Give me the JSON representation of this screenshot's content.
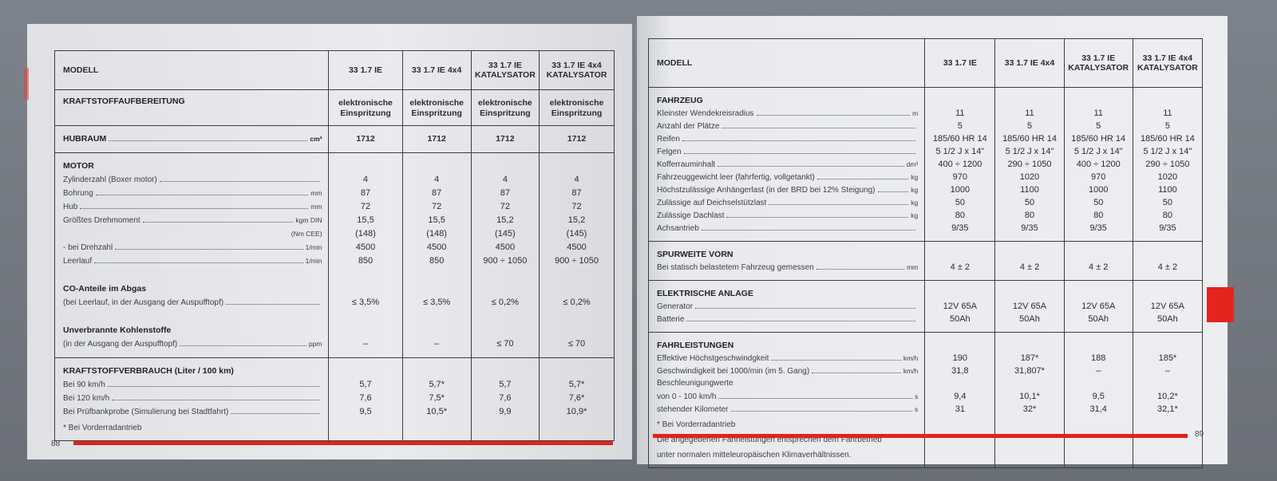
{
  "colors": {
    "accent_red": "#e2231a",
    "page": "#e6e8ec",
    "rule": "#3a3c40"
  },
  "left": {
    "page_number": "88",
    "header": {
      "label": "MODELL",
      "columns": [
        "33 1.7 IE",
        "33 1.7 IE 4x4",
        "33 1.7 IE\nKATALYSATOR",
        "33 1.7 IE 4x4\nKATALYSATOR"
      ]
    },
    "sections": [
      {
        "lines": [
          {
            "label": "KRAFTSTOFFAUFBEREITUNG",
            "bold": true,
            "multi": true,
            "values": [
              "elektronische\nEinspritzung",
              "elektronische\nEinspritzung",
              "elektronische\nEinspritzung",
              "elektronische\nEinspritzung"
            ]
          }
        ]
      },
      {
        "lines": [
          {
            "label": "HUBRAUM",
            "unit": "cm³",
            "dots": true,
            "bold": true,
            "values": [
              "1712",
              "1712",
              "1712",
              "1712"
            ]
          }
        ]
      },
      {
        "lines": [
          {
            "label": "MOTOR",
            "bold": true
          },
          {
            "label": "Zylinderzahl (Boxer motor)",
            "dots": true,
            "values": [
              "4",
              "4",
              "4",
              "4"
            ]
          },
          {
            "label": "Bohrung",
            "unit": "mm",
            "dots": true,
            "values": [
              "87",
              "87",
              "87",
              "87"
            ]
          },
          {
            "label": "Hub",
            "unit": "mm",
            "dots": true,
            "values": [
              "72",
              "72",
              "72",
              "72"
            ]
          },
          {
            "label": "Größtes Drehmoment",
            "unit": "kgm DIN",
            "dots": true,
            "values": [
              "15,5",
              "15,5",
              "15,2",
              "15,2"
            ]
          },
          {
            "label": "",
            "unit": "(Nm CEE)",
            "values": [
              "(148)",
              "(148)",
              "(145)",
              "(145)"
            ]
          },
          {
            "label": "- bei Drehzahl",
            "unit": "1/min",
            "dots": true,
            "values": [
              "4500",
              "4500",
              "4500",
              "4500"
            ]
          },
          {
            "label": "Leerlauf",
            "unit": "1/min",
            "dots": true,
            "values": [
              "850",
              "850",
              "900 ÷ 1050",
              "900 ÷ 1050"
            ]
          },
          {
            "label": "CO-Anteile im Abgas",
            "bold": true,
            "gap": true
          },
          {
            "label": "(bei Leerlauf, in der Ausgang der Auspufftopf)",
            "dots": true,
            "values": [
              "≤ 3,5%",
              "≤ 3,5%",
              "≤ 0,2%",
              "≤ 0,2%"
            ]
          },
          {
            "label": "Unverbrannte Kohlenstoffe",
            "bold": true,
            "gap": true
          },
          {
            "label": "(in der Ausgang der Auspufftopf)",
            "unit": "ppm",
            "dots": true,
            "values": [
              "–",
              "–",
              "≤ 70",
              "≤ 70"
            ]
          }
        ]
      },
      {
        "lines": [
          {
            "label": "KRAFTSTOFFVERBRAUCH (Liter / 100 km)",
            "bold": true
          },
          {
            "label": "Bei 90 km/h",
            "dots": true,
            "values": [
              "5,7",
              "5,7*",
              "5,7",
              "5,7*"
            ]
          },
          {
            "label": "Bei 120 km/h",
            "dots": true,
            "values": [
              "7,6",
              "7,5*",
              "7,6",
              "7,6*"
            ]
          },
          {
            "label": "Bei Prüfbankprobe (Simulierung bei Stadtfahrt)",
            "dots": true,
            "values": [
              "9,5",
              "10,5*",
              "9,9",
              "10,9*"
            ]
          }
        ],
        "notes": [
          "*  Bei Vorderradantrieb"
        ]
      }
    ]
  },
  "right": {
    "page_number": "89",
    "header": {
      "label": "MODELL",
      "columns": [
        "33 1.7 IE",
        "33 1.7 IE 4x4",
        "33 1.7 IE\nKATALYSATOR",
        "33 1.7 IE 4x4\nKATALYSATOR"
      ]
    },
    "sections": [
      {
        "lines": [
          {
            "label": "FAHRZEUG",
            "bold": true
          },
          {
            "label": "Kleinster Wendekreisradius",
            "unit": "m",
            "dots": true,
            "values": [
              "11",
              "11",
              "11",
              "11"
            ]
          },
          {
            "label": "Anzahl der Plätze",
            "dots": true,
            "values": [
              "5",
              "5",
              "5",
              "5"
            ]
          },
          {
            "label": "Reifen",
            "dots": true,
            "values": [
              "185/60 HR 14",
              "185/60 HR 14",
              "185/60 HR 14",
              "185/60 HR 14"
            ]
          },
          {
            "label": "Felgen",
            "dots": true,
            "values": [
              "5 1/2 J x 14\"",
              "5 1/2 J x 14\"",
              "5 1/2 J x 14\"",
              "5 1/2 J x 14\""
            ]
          },
          {
            "label": "Kofferrauminhalt",
            "unit": "dm³",
            "dots": true,
            "values": [
              "400 ÷ 1200",
              "290 ÷ 1050",
              "400 ÷ 1200",
              "290 ÷ 1050"
            ]
          },
          {
            "label": "Fahrzeuggewicht leer (fahrfertig, vollgetankt)",
            "unit": "kg",
            "dots": true,
            "values": [
              "970",
              "1020",
              "970",
              "1020"
            ]
          },
          {
            "label": "Höchstzulässige Anhängerlast (in der BRD bei 12% Steigung)",
            "unit": "kg",
            "dots": true,
            "values": [
              "1000",
              "1100",
              "1000",
              "1100"
            ]
          },
          {
            "label": "Zulässige auf Deichselstützlast",
            "unit": "kg",
            "dots": true,
            "values": [
              "50",
              "50",
              "50",
              "50"
            ]
          },
          {
            "label": "Zulässige Dachlast",
            "unit": "kg",
            "dots": true,
            "values": [
              "80",
              "80",
              "80",
              "80"
            ]
          },
          {
            "label": "Achsantrieb",
            "dots": true,
            "values": [
              "9/35",
              "9/35",
              "9/35",
              "9/35"
            ]
          }
        ]
      },
      {
        "lines": [
          {
            "label": "SPURWEITE VORN",
            "bold": true
          },
          {
            "label": "Bei statisch belastetem Fahrzeug gemessen",
            "unit": "mm",
            "dots": true,
            "values": [
              "4 ± 2",
              "4 ± 2",
              "4 ± 2",
              "4 ± 2"
            ]
          }
        ]
      },
      {
        "lines": [
          {
            "label": "ELEKTRISCHE ANLAGE",
            "bold": true
          },
          {
            "label": "Generator",
            "dots": true,
            "values": [
              "12V 65A",
              "12V 65A",
              "12V 65A",
              "12V 65A"
            ]
          },
          {
            "label": "Batterie",
            "dots": true,
            "values": [
              "50Ah",
              "50Ah",
              "50Ah",
              "50Ah"
            ]
          }
        ]
      },
      {
        "lines": [
          {
            "label": "FAHRLEISTUNGEN",
            "bold": true
          },
          {
            "label": "Effektive Höchstgeschwindgkeit",
            "unit": "km/h",
            "dots": true,
            "values": [
              "190",
              "187*",
              "188",
              "185*"
            ]
          },
          {
            "label": "Geschwindigkeit bei 1000/min (im 5. Gang)",
            "unit": "km/h",
            "dots": true,
            "values": [
              "31,8",
              "31,807*",
              "–",
              "–"
            ]
          },
          {
            "label": "Beschleunigungwerte"
          },
          {
            "label": "von 0 - 100 km/h",
            "unit": "s",
            "dots": true,
            "values": [
              "9,4",
              "10,1*",
              "9,5",
              "10,2*"
            ]
          },
          {
            "label": "stehender Kilometer",
            "unit": "s",
            "dots": true,
            "values": [
              "31",
              "32*",
              "31,4",
              "32,1*"
            ]
          }
        ],
        "notes": [
          "*  Bei Vorderradantrieb",
          "Die angegebenen Fahrleistungen entsprechen dem Fahrbetrieb",
          "unter normalen mitteleuropäischen Klimaverhältnissen."
        ]
      }
    ]
  }
}
